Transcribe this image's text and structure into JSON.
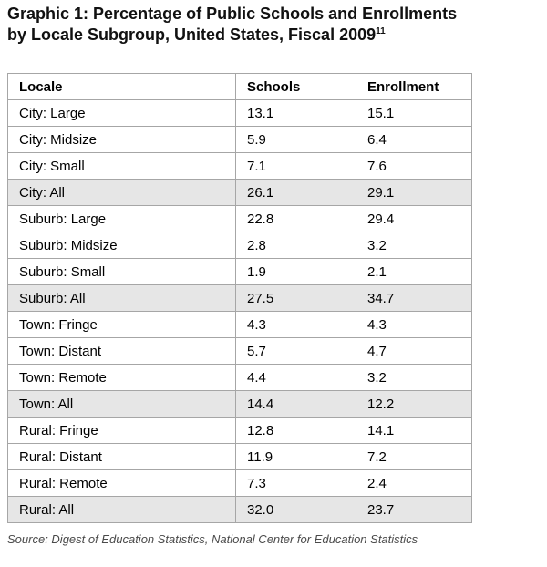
{
  "title": {
    "line1": "Graphic 1: Percentage of Public Schools and Enrollments",
    "line2": "by Locale Subgroup, United States, Fiscal 2009",
    "footnote_marker": "11"
  },
  "table": {
    "columns": [
      "Locale",
      "Schools",
      "Enrollment"
    ],
    "rows": [
      {
        "locale": "City: Large",
        "schools": "13.1",
        "enrollment": "15.1",
        "shaded": false
      },
      {
        "locale": "City: Midsize",
        "schools": "5.9",
        "enrollment": "6.4",
        "shaded": false
      },
      {
        "locale": "City: Small",
        "schools": "7.1",
        "enrollment": "7.6",
        "shaded": false
      },
      {
        "locale": "City: All",
        "schools": "26.1",
        "enrollment": "29.1",
        "shaded": true
      },
      {
        "locale": "Suburb: Large",
        "schools": "22.8",
        "enrollment": "29.4",
        "shaded": false
      },
      {
        "locale": "Suburb: Midsize",
        "schools": "2.8",
        "enrollment": "3.2",
        "shaded": false
      },
      {
        "locale": "Suburb: Small",
        "schools": "1.9",
        "enrollment": "2.1",
        "shaded": false
      },
      {
        "locale": "Suburb: All",
        "schools": "27.5",
        "enrollment": "34.7",
        "shaded": true
      },
      {
        "locale": "Town: Fringe",
        "schools": "4.3",
        "enrollment": "4.3",
        "shaded": false
      },
      {
        "locale": "Town: Distant",
        "schools": "5.7",
        "enrollment": "4.7",
        "shaded": false
      },
      {
        "locale": "Town: Remote",
        "schools": "4.4",
        "enrollment": "3.2",
        "shaded": false
      },
      {
        "locale": "Town: All",
        "schools": "14.4",
        "enrollment": "12.2",
        "shaded": true
      },
      {
        "locale": "Rural: Fringe",
        "schools": "12.8",
        "enrollment": "14.1",
        "shaded": false
      },
      {
        "locale": "Rural: Distant",
        "schools": "11.9",
        "enrollment": "7.2",
        "shaded": false
      },
      {
        "locale": "Rural: Remote",
        "schools": "7.3",
        "enrollment": "2.4",
        "shaded": false
      },
      {
        "locale": "Rural: All",
        "schools": "32.0",
        "enrollment": "23.7",
        "shaded": true
      }
    ]
  },
  "source": "Source: Digest of Education Statistics, National Center for Education Statistics",
  "colors": {
    "shaded_row": "#e6e6e6",
    "border": "#a6a6a6",
    "outer_border": "#8c8c8c",
    "text": "#111111",
    "source_text": "#4a4a4a"
  },
  "chart_data": {
    "type": "table",
    "title": "Graphic 1: Percentage of Public Schools and Enrollments by Locale Subgroup, United States, Fiscal 2009",
    "footnote_marker": "11",
    "columns": [
      "Locale",
      "Schools",
      "Enrollment"
    ],
    "categories": [
      "City: Large",
      "City: Midsize",
      "City: Small",
      "City: All",
      "Suburb: Large",
      "Suburb: Midsize",
      "Suburb: Small",
      "Suburb: All",
      "Town: Fringe",
      "Town: Distant",
      "Town: Remote",
      "Town: All",
      "Rural: Fringe",
      "Rural: Distant",
      "Rural: Remote",
      "Rural: All"
    ],
    "series": [
      {
        "name": "Schools",
        "values": [
          13.1,
          5.9,
          7.1,
          26.1,
          22.8,
          2.8,
          1.9,
          27.5,
          4.3,
          5.7,
          4.4,
          14.4,
          12.8,
          11.9,
          7.3,
          32.0
        ]
      },
      {
        "name": "Enrollment",
        "values": [
          15.1,
          6.4,
          7.6,
          29.1,
          29.4,
          3.2,
          2.1,
          34.7,
          4.3,
          4.7,
          3.2,
          12.2,
          14.1,
          7.2,
          2.4,
          23.7
        ]
      }
    ],
    "subtotal_rows": [
      "City: All",
      "Suburb: All",
      "Town: All",
      "Rural: All"
    ],
    "source": "Source: Digest of Education Statistics, National Center for Education Statistics"
  }
}
